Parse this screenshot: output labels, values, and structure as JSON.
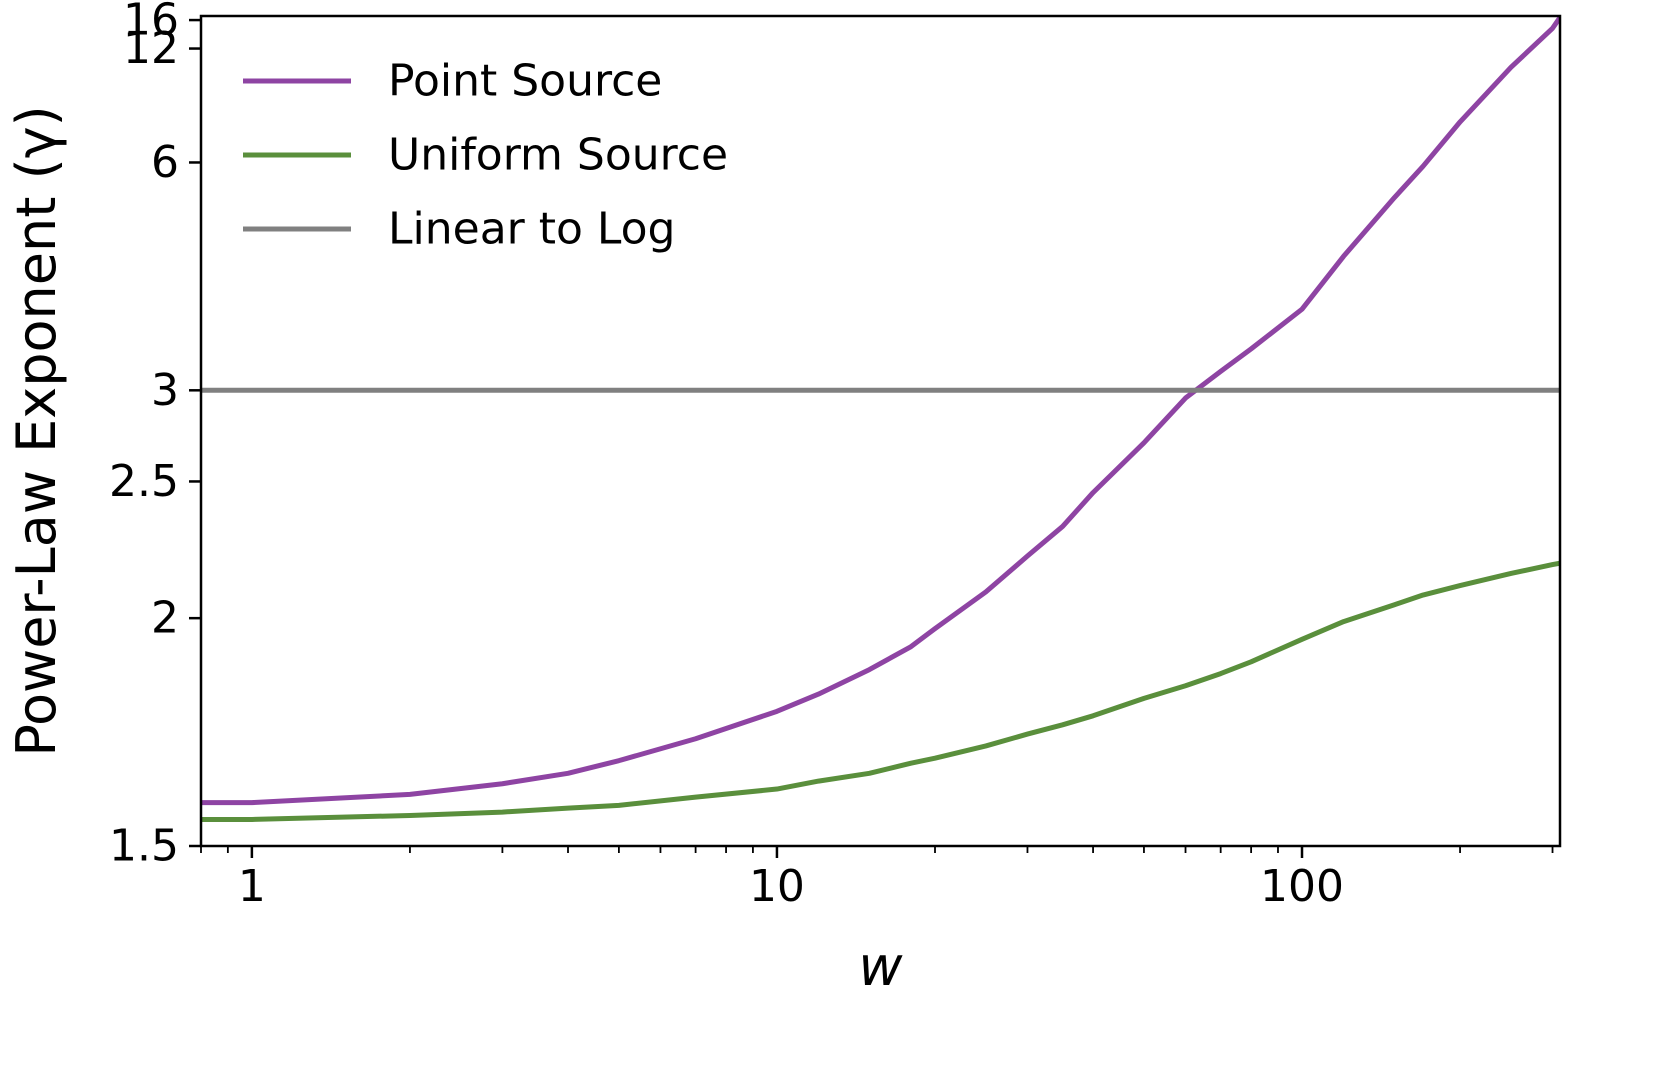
{
  "chart_data": {
    "type": "line",
    "title": "",
    "xlabel": "w",
    "ylabel": "Power-Law Exponent (γ)",
    "xscale": "log",
    "yscale": "reciprocal",
    "xlim": [
      0.8,
      310
    ],
    "ylim": [
      1.5,
      16.8
    ],
    "x_ticks": [
      {
        "value": 1,
        "label": "1"
      },
      {
        "value": 10,
        "label": "10"
      },
      {
        "value": 100,
        "label": "100"
      }
    ],
    "y_ticks": [
      {
        "value": 1.5,
        "label": "1.5"
      },
      {
        "value": 2,
        "label": "2"
      },
      {
        "value": 2.5,
        "label": "2.5"
      },
      {
        "value": 3,
        "label": "3"
      },
      {
        "value": 6,
        "label": "6"
      },
      {
        "value": 12,
        "label": "12"
      },
      {
        "value": 16,
        "label": "16"
      }
    ],
    "grid": false,
    "legend_position": "upper-left",
    "series": [
      {
        "name": "Point Source",
        "color": "#8e44a3",
        "x": [
          0.8,
          1,
          2,
          3,
          4,
          5,
          7,
          10,
          12,
          15,
          18,
          20,
          25,
          30,
          35,
          40,
          50,
          60,
          70,
          80,
          100,
          120,
          150,
          170,
          200,
          250,
          300,
          310
        ],
        "y": [
          1.575,
          1.575,
          1.59,
          1.61,
          1.63,
          1.655,
          1.7,
          1.76,
          1.8,
          1.86,
          1.92,
          1.97,
          2.08,
          2.2,
          2.31,
          2.45,
          2.69,
          2.95,
          3.13,
          3.3,
          3.65,
          4.25,
          5.2,
          5.9,
          7.3,
          10.3,
          14.6,
          16.5
        ]
      },
      {
        "name": "Uniform Source",
        "color": "#5a8f3c",
        "x": [
          0.8,
          1,
          2,
          3,
          4,
          5,
          7,
          10,
          12,
          15,
          18,
          20,
          25,
          30,
          35,
          40,
          50,
          60,
          70,
          80,
          100,
          120,
          150,
          170,
          200,
          250,
          300,
          310
        ],
        "y": [
          1.545,
          1.545,
          1.552,
          1.558,
          1.565,
          1.57,
          1.585,
          1.6,
          1.615,
          1.63,
          1.65,
          1.66,
          1.685,
          1.71,
          1.73,
          1.75,
          1.79,
          1.82,
          1.85,
          1.88,
          1.94,
          1.99,
          2.04,
          2.07,
          2.1,
          2.14,
          2.17,
          2.175
        ]
      },
      {
        "name": "Linear to Log",
        "color": "#808080",
        "x": [
          0.8,
          310
        ],
        "y": [
          3,
          3
        ]
      }
    ]
  }
}
